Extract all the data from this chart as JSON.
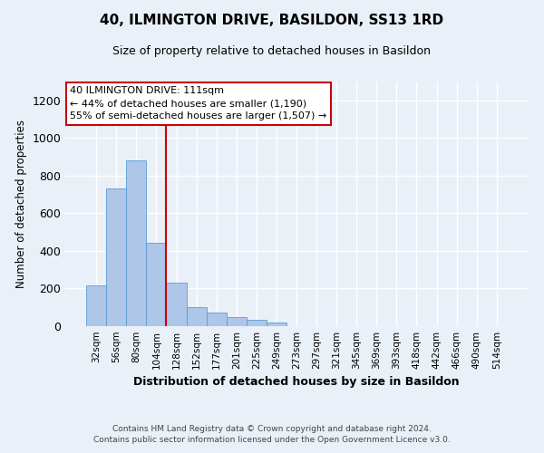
{
  "title": "40, ILMINGTON DRIVE, BASILDON, SS13 1RD",
  "subtitle": "Size of property relative to detached houses in Basildon",
  "xlabel": "Distribution of detached houses by size in Basildon",
  "ylabel": "Number of detached properties",
  "footer": "Contains HM Land Registry data © Crown copyright and database right 2024.\nContains public sector information licensed under the Open Government Licence v3.0.",
  "bar_labels": [
    "32sqm",
    "56sqm",
    "80sqm",
    "104sqm",
    "128sqm",
    "152sqm",
    "177sqm",
    "201sqm",
    "225sqm",
    "249sqm",
    "273sqm",
    "297sqm",
    "321sqm",
    "345sqm",
    "369sqm",
    "393sqm",
    "418sqm",
    "442sqm",
    "466sqm",
    "490sqm",
    "514sqm"
  ],
  "bar_values": [
    215,
    730,
    880,
    445,
    230,
    100,
    70,
    50,
    35,
    20,
    0,
    0,
    0,
    0,
    0,
    0,
    0,
    0,
    0,
    0,
    0
  ],
  "bar_color": "#aec6e8",
  "bar_edge_color": "#5b9bd5",
  "background_color": "#eaf0f8",
  "grid_color": "#ffffff",
  "property_line_color": "#cc0000",
  "annotation_text": "40 ILMINGTON DRIVE: 111sqm\n← 44% of detached houses are smaller (1,190)\n55% of semi-detached houses are larger (1,507) →",
  "annotation_box_color": "#ffffff",
  "annotation_border_color": "#cc0000",
  "ylim": [
    0,
    1300
  ],
  "yticks": [
    0,
    200,
    400,
    600,
    800,
    1000,
    1200
  ],
  "title_fontsize": 11,
  "subtitle_fontsize": 9
}
